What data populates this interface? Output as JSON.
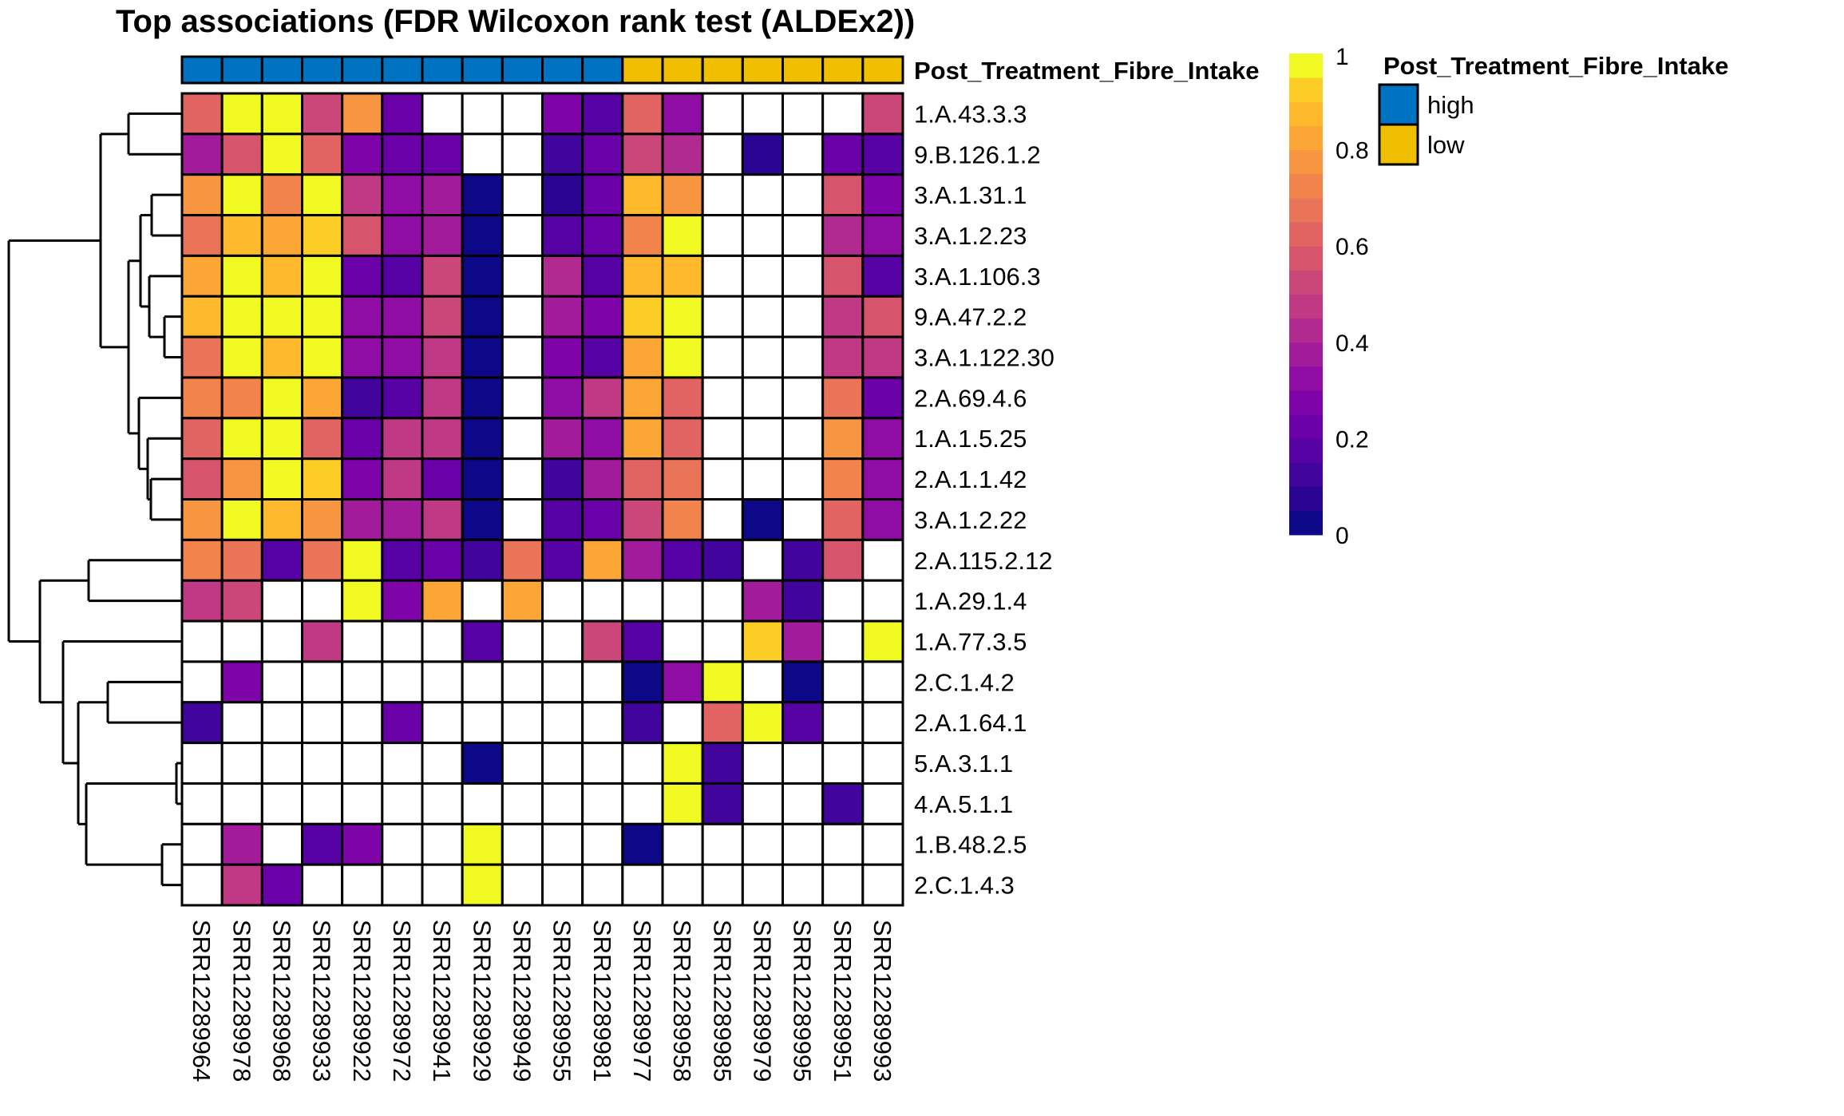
{
  "chart_data": {
    "type": "heatmap",
    "title": "Top associations (FDR Wilcoxon rank test (ALDEx2))",
    "annotation": {
      "name": "Post_Treatment_Fibre_Intake",
      "levels": [
        {
          "label": "high",
          "color": "#0072C2"
        },
        {
          "label": "low",
          "color": "#F0C000"
        }
      ],
      "values": [
        "high",
        "high",
        "high",
        "high",
        "high",
        "high",
        "high",
        "high",
        "high",
        "high",
        "high",
        "low",
        "low",
        "low",
        "low",
        "low",
        "low",
        "low"
      ]
    },
    "columns": [
      "SRR12289964",
      "SRR12289978",
      "SRR12289968",
      "SRR12289933",
      "SRR12289922",
      "SRR12289972",
      "SRR12289941",
      "SRR12289929",
      "SRR12289949",
      "SRR12289955",
      "SRR12289981",
      "SRR12289977",
      "SRR12289958",
      "SRR12289985",
      "SRR12289979",
      "SRR12289995",
      "SRR12289951",
      "SRR12289993"
    ],
    "rows": [
      "1.A.43.3.3",
      "9.B.126.1.2",
      "3.A.1.31.1",
      "3.A.1.2.23",
      "3.A.1.106.3",
      "9.A.47.2.2",
      "3.A.1.122.30",
      "2.A.69.4.6",
      "1.A.1.5.25",
      "2.A.1.1.42",
      "3.A.1.2.22",
      "2.A.115.2.12",
      "1.A.29.1.4",
      "1.A.77.3.5",
      "2.C.1.4.2",
      "2.A.1.64.1",
      "5.A.3.1.1",
      "4.A.5.1.1",
      "1.B.48.2.5",
      "2.C.1.4.3"
    ],
    "values": [
      [
        0.6,
        1.0,
        1.0,
        0.5,
        0.78,
        0.2,
        null,
        null,
        null,
        0.25,
        0.15,
        0.6,
        0.3,
        null,
        null,
        null,
        null,
        0.5
      ],
      [
        0.38,
        0.55,
        1.0,
        0.6,
        0.25,
        0.2,
        0.2,
        null,
        null,
        0.12,
        0.2,
        0.5,
        0.4,
        null,
        0.08,
        null,
        0.2,
        0.15
      ],
      [
        0.78,
        1.0,
        0.7,
        1.0,
        0.45,
        0.3,
        0.38,
        0.02,
        null,
        0.08,
        0.2,
        0.85,
        0.78,
        null,
        null,
        null,
        0.55,
        0.25
      ],
      [
        0.65,
        0.88,
        0.82,
        0.92,
        0.55,
        0.33,
        0.38,
        0.02,
        null,
        0.15,
        0.2,
        0.7,
        1.0,
        null,
        null,
        null,
        0.4,
        0.3
      ],
      [
        0.82,
        1.0,
        0.88,
        1.0,
        0.2,
        0.15,
        0.5,
        0.02,
        null,
        0.4,
        0.15,
        0.85,
        0.85,
        null,
        null,
        null,
        0.55,
        0.15
      ],
      [
        0.88,
        1.0,
        1.0,
        1.0,
        0.33,
        0.33,
        0.5,
        0.02,
        null,
        0.35,
        0.25,
        0.92,
        1.0,
        null,
        null,
        null,
        0.45,
        0.55
      ],
      [
        0.65,
        1.0,
        0.88,
        1.0,
        0.33,
        0.3,
        0.45,
        0.02,
        null,
        0.25,
        0.15,
        0.82,
        1.0,
        null,
        null,
        null,
        0.45,
        0.45
      ],
      [
        0.72,
        0.72,
        1.0,
        0.82,
        0.1,
        0.15,
        0.45,
        0.02,
        null,
        0.3,
        0.45,
        0.82,
        0.6,
        null,
        null,
        null,
        0.65,
        0.2
      ],
      [
        0.6,
        1.0,
        1.0,
        0.6,
        0.22,
        0.45,
        0.45,
        0.02,
        null,
        0.35,
        0.3,
        0.82,
        0.6,
        null,
        null,
        null,
        0.78,
        0.3
      ],
      [
        0.55,
        0.78,
        1.0,
        0.92,
        0.28,
        0.45,
        0.22,
        0.02,
        null,
        0.1,
        0.35,
        0.6,
        0.65,
        null,
        null,
        null,
        0.72,
        0.3
      ],
      [
        0.78,
        1.0,
        0.85,
        0.78,
        0.35,
        0.35,
        0.45,
        0.02,
        null,
        0.15,
        0.22,
        0.5,
        0.72,
        null,
        0.02,
        null,
        0.6,
        0.3
      ],
      [
        0.72,
        0.65,
        0.15,
        0.65,
        1.0,
        0.15,
        0.22,
        0.1,
        0.65,
        0.15,
        0.82,
        0.35,
        0.15,
        0.1,
        null,
        0.1,
        0.55,
        null
      ],
      [
        0.45,
        0.5,
        null,
        null,
        1.0,
        0.28,
        0.82,
        null,
        0.82,
        null,
        null,
        null,
        null,
        null,
        0.38,
        0.1,
        null,
        null
      ],
      [
        null,
        null,
        null,
        0.45,
        null,
        null,
        null,
        0.15,
        null,
        null,
        0.5,
        0.15,
        null,
        null,
        0.92,
        0.35,
        null,
        1.0
      ],
      [
        null,
        0.25,
        null,
        null,
        null,
        null,
        null,
        null,
        null,
        null,
        null,
        0.02,
        0.3,
        1.0,
        null,
        0.02,
        null,
        null
      ],
      [
        0.1,
        null,
        null,
        null,
        null,
        0.2,
        null,
        null,
        null,
        null,
        null,
        0.1,
        null,
        0.6,
        1.0,
        0.15,
        null,
        null
      ],
      [
        null,
        null,
        null,
        null,
        null,
        null,
        null,
        0.02,
        null,
        null,
        null,
        null,
        1.0,
        0.1,
        null,
        null,
        null,
        null
      ],
      [
        null,
        null,
        null,
        null,
        null,
        null,
        null,
        null,
        null,
        null,
        null,
        null,
        1.0,
        0.1,
        null,
        null,
        0.1,
        null
      ],
      [
        null,
        0.38,
        null,
        0.15,
        0.25,
        null,
        null,
        1.0,
        null,
        null,
        null,
        0.02,
        null,
        null,
        null,
        null,
        null,
        null
      ],
      [
        null,
        0.45,
        0.2,
        null,
        null,
        null,
        null,
        1.0,
        null,
        null,
        null,
        null,
        null,
        null,
        null,
        null,
        null,
        null
      ]
    ],
    "colorbar": {
      "range": [
        0,
        1
      ],
      "ticks": [
        "0",
        "0.2",
        "0.4",
        "0.6",
        "0.8",
        "1"
      ],
      "tick_values": [
        0,
        0.2,
        0.4,
        0.6,
        0.8,
        1
      ],
      "palette": [
        "#0D0887",
        "#2A0593",
        "#41049D",
        "#5601A4",
        "#6A00A8",
        "#7E03A8",
        "#8F0DA4",
        "#A11B9B",
        "#B12A90",
        "#BF3984",
        "#CB4679",
        "#D6556D",
        "#E16462",
        "#EA7457",
        "#F2844B",
        "#F89540",
        "#FCA636",
        "#FEBA2C",
        "#FCCE25",
        "#F0F921"
      ],
      "missing_color": "#FFFFFF"
    },
    "dendrogram": "row clustering (hierarchical)"
  }
}
